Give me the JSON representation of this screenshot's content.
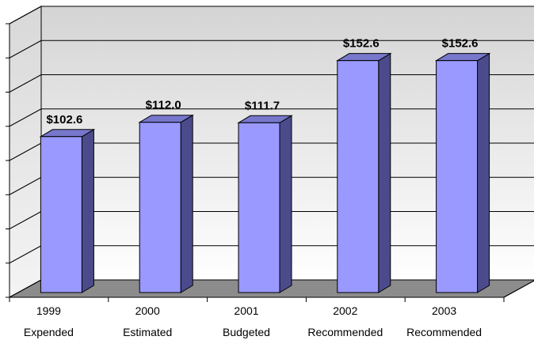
{
  "chart_data": {
    "type": "bar",
    "categories": [
      [
        "1999",
        "Expended"
      ],
      [
        "2000",
        "Estimated"
      ],
      [
        "2001",
        "Budgeted"
      ],
      [
        "2002",
        "Recommended"
      ],
      [
        "2003",
        "Recommended"
      ]
    ],
    "values": [
      102.6,
      112.0,
      111.7,
      152.6,
      152.6
    ],
    "value_labels": [
      "$102.6",
      "$112.0",
      "$111.7",
      "$152.6",
      "$152.6"
    ],
    "ylim": [
      0,
      180
    ],
    "y_gridline_count": 8,
    "three_d": true,
    "grid": true,
    "colors": {
      "bar_front": "#9999ff",
      "bar_side": "#4b4b8c",
      "bar_top": "#7777cc",
      "floor": "#8c8c8c",
      "wall_top": "#dcdcdc",
      "wall_bottom": "#ffffff"
    }
  }
}
